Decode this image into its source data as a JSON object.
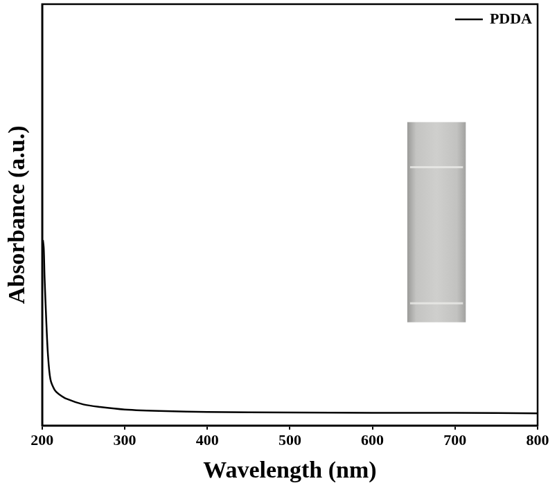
{
  "chart_data": {
    "type": "line",
    "x_label": "Wavelength (nm)",
    "y_label": "Absorbance (a.u.)",
    "series": [
      {
        "name": "PDDA",
        "color": "#000000",
        "x": [
          201,
          202,
          203,
          205,
          207,
          210,
          215,
          220,
          230,
          250,
          270,
          300,
          350,
          400,
          500,
          600,
          700,
          800
        ],
        "values": [
          0.44,
          0.42,
          0.35,
          0.25,
          0.17,
          0.11,
          0.085,
          0.075,
          0.063,
          0.05,
          0.044,
          0.038,
          0.034,
          0.032,
          0.031,
          0.03,
          0.03,
          0.029
        ]
      }
    ],
    "xlim": [
      200,
      800
    ],
    "xticks": [
      200,
      300,
      400,
      500,
      600,
      700,
      800
    ],
    "ylim": [
      0,
      1
    ],
    "tick_labels": "x",
    "grid": false,
    "legend": "upper right"
  }
}
